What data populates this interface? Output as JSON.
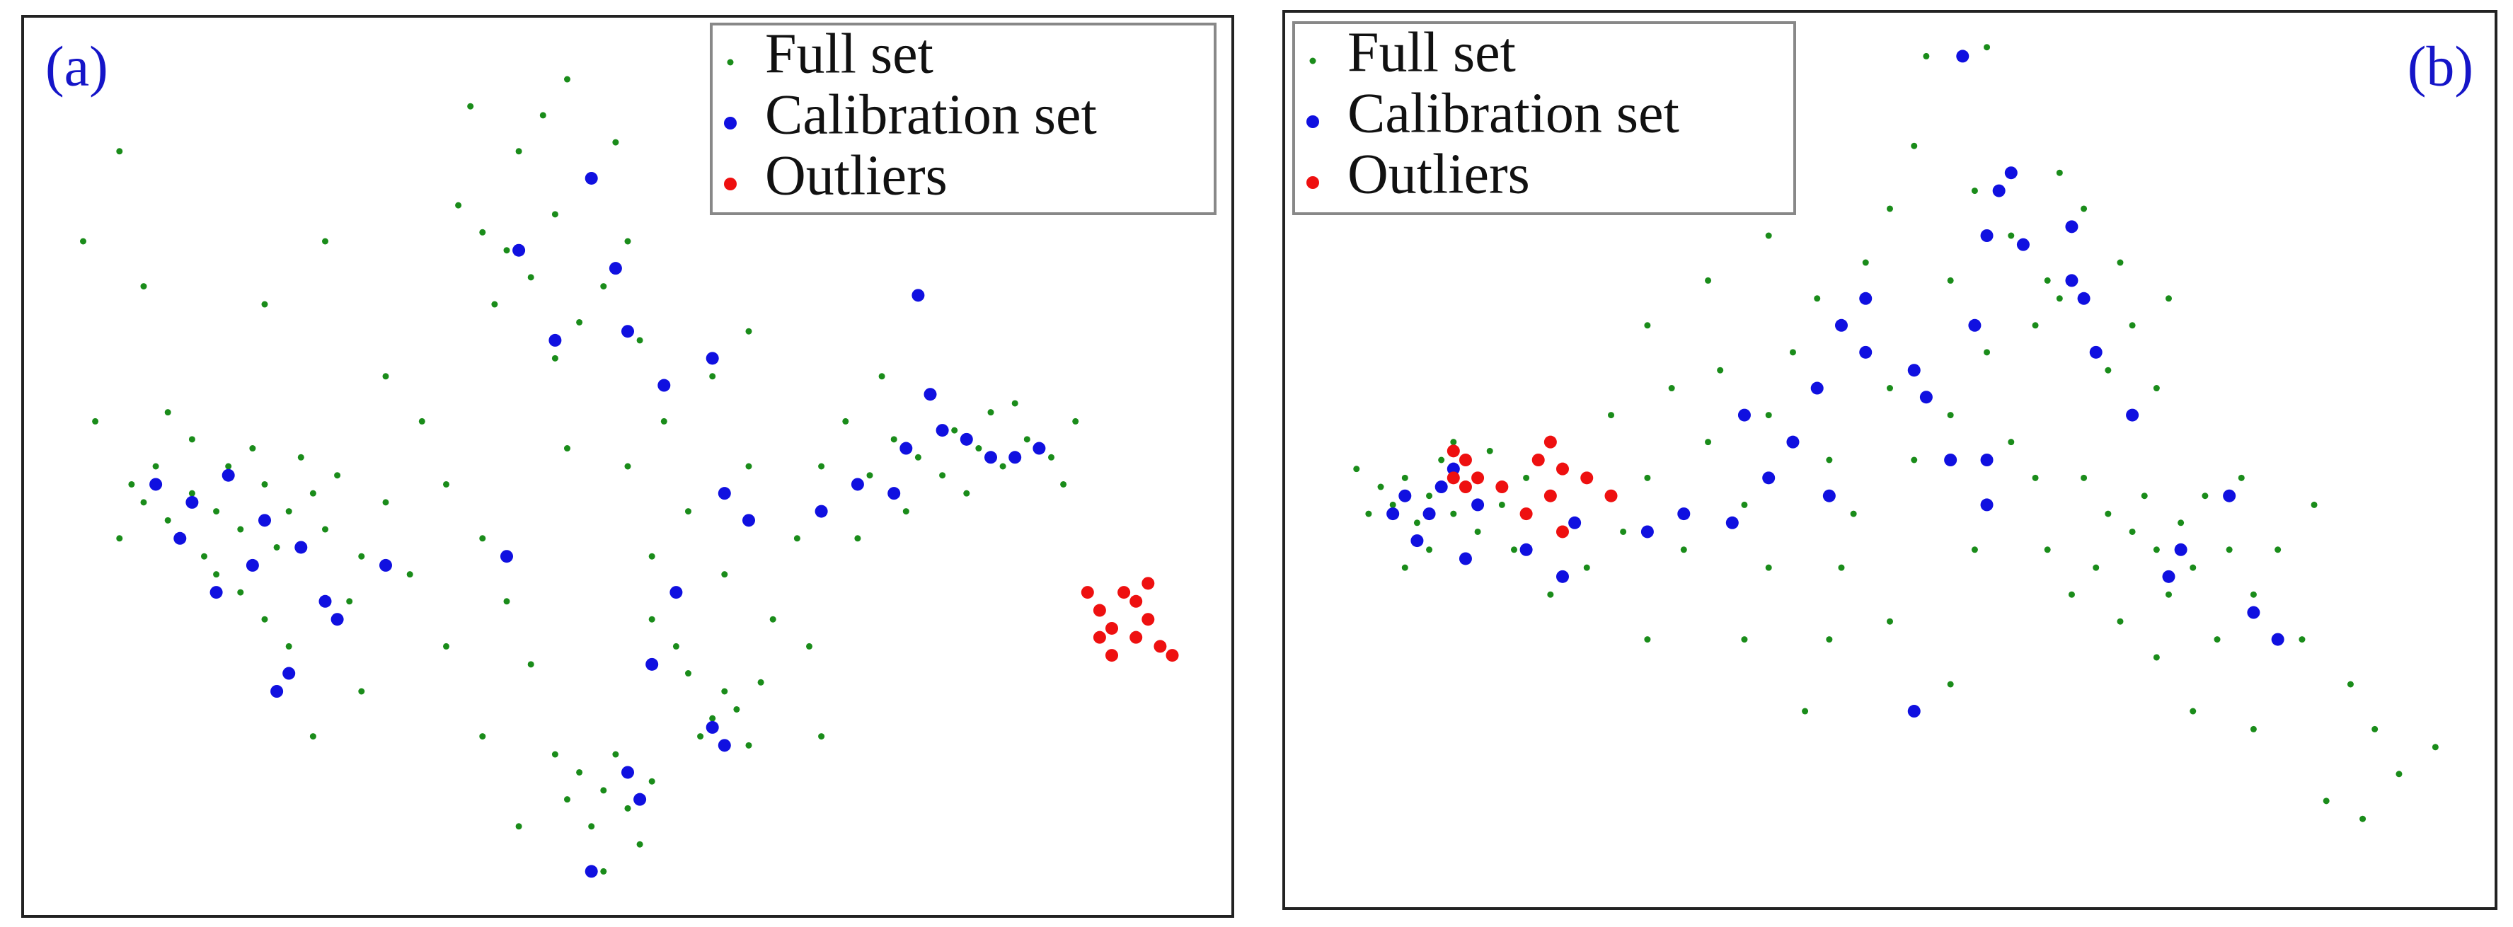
{
  "chart_data": [
    {
      "type": "scatter",
      "label": "(a)",
      "xlim": [
        0,
        100
      ],
      "ylim": [
        0,
        100
      ],
      "legend": "upper right",
      "series": [
        {
          "name": "Full set",
          "color": "#1a8c1a",
          "x": [
            16,
            14,
            18,
            12,
            20,
            17,
            10,
            22,
            15,
            19,
            13,
            24,
            11,
            21,
            16,
            25,
            9,
            23,
            18,
            26,
            14,
            20,
            28,
            12,
            30,
            8,
            22,
            27,
            6,
            32,
            40,
            38,
            42,
            44,
            41,
            43,
            45,
            47,
            39,
            46,
            48,
            50,
            36,
            44,
            49,
            51,
            37,
            79,
            77,
            81,
            76,
            83,
            80,
            74,
            85,
            78,
            82,
            72,
            75,
            86,
            70,
            73,
            71,
            68,
            69,
            66,
            87,
            48,
            46,
            50,
            47,
            49,
            45,
            51,
            52,
            44,
            48,
            57,
            56,
            59,
            58,
            55,
            60,
            54,
            61,
            30,
            33,
            35,
            38,
            40,
            42,
            52,
            55,
            58,
            60,
            62,
            64,
            53,
            57,
            60,
            50,
            45,
            35,
            28,
            24,
            10,
            8,
            5,
            20,
            25,
            65,
            66,
            38,
            41,
            52
          ],
          "values": [
            45,
            47,
            43,
            44,
            48,
            50,
            46,
            45,
            40,
            52,
            42,
            47,
            50,
            41,
            38,
            43,
            48,
            51,
            36,
            49,
            53,
            33,
            40,
            56,
            46,
            42,
            30,
            35,
            55,
            38,
            74,
            76,
            71,
            78,
            85,
            89,
            93,
            82,
            68,
            66,
            70,
            75,
            79,
            62,
            86,
            64,
            90,
            52,
            54,
            50,
            49,
            53,
            56,
            51,
            51,
            47,
            57,
            53,
            58,
            48,
            49,
            45,
            60,
            55,
            42,
            50,
            55,
            14,
            16,
            12,
            10,
            18,
            13,
            8,
            15,
            18,
            5,
            22,
            20,
            23,
            25,
            27,
            19,
            30,
            26,
            60,
            55,
            48,
            42,
            35,
            28,
            40,
            45,
            38,
            50,
            33,
            42,
            55,
            60,
            65,
            50,
            52,
            30,
            25,
            20,
            70,
            85,
            75,
            68,
            75,
            30,
            20,
            20,
            10,
            33
          ]
        },
        {
          "name": "Calibration set",
          "color": "#1010e0",
          "x": [
            14,
            17,
            13,
            20,
            11,
            19,
            16,
            23,
            26,
            22,
            21,
            25,
            30,
            41,
            44,
            47,
            49,
            50,
            53,
            57,
            58,
            60,
            52,
            54,
            66,
            72,
            73,
            76,
            78,
            80,
            82,
            84,
            75,
            69,
            58,
            57,
            51,
            50,
            47,
            74,
            40
          ],
          "values": [
            46,
            49,
            42,
            44,
            48,
            39,
            36,
            41,
            33,
            27,
            25,
            35,
            39,
            74,
            64,
            82,
            72,
            65,
            59,
            62,
            47,
            44,
            28,
            36,
            45,
            47,
            52,
            54,
            53,
            51,
            51,
            52,
            58,
            48,
            19,
            21,
            13,
            16,
            5,
            69,
            40
          ]
        },
        {
          "name": "Outliers",
          "color": "#ee1010",
          "x": [
            88,
            89,
            91,
            92,
            93,
            90,
            92,
            93,
            90,
            89,
            94,
            95
          ],
          "values": [
            36,
            34,
            36,
            35,
            37,
            32,
            31,
            33,
            29,
            31,
            30,
            29
          ]
        }
      ]
    },
    {
      "type": "scatter",
      "label": "(b)",
      "xlim": [
        0,
        100
      ],
      "ylim": [
        0,
        100
      ],
      "legend": "upper left",
      "series": [
        {
          "name": "Full set",
          "color": "#1a8c1a",
          "x": [
            12,
            10,
            14,
            11,
            13,
            9,
            15,
            8,
            16,
            12,
            17,
            7,
            14,
            18,
            10,
            6,
            19,
            20,
            30,
            35,
            40,
            45,
            50,
            42,
            38,
            47,
            52,
            55,
            33,
            36,
            44,
            48,
            55,
            58,
            60,
            62,
            46,
            40,
            28,
            25,
            32,
            50,
            52,
            57,
            60,
            63,
            53,
            58,
            64,
            35,
            40,
            30,
            27,
            45,
            50,
            38,
            43,
            55,
            57,
            22,
            30,
            70,
            68,
            72,
            74,
            67,
            71,
            75,
            73,
            69,
            66,
            76,
            78,
            80,
            77,
            72,
            65,
            63,
            79,
            82,
            84,
            85,
            88,
            90,
            92,
            95,
            89,
            86,
            80,
            75,
            62,
            65,
            68,
            70,
            72,
            66,
            69,
            73,
            64,
            70
          ],
          "values": [
            46,
            48,
            44,
            43,
            50,
            45,
            47,
            47,
            42,
            40,
            51,
            44,
            52,
            45,
            38,
            49,
            40,
            48,
            48,
            52,
            55,
            50,
            58,
            62,
            45,
            44,
            50,
            55,
            40,
            60,
            68,
            72,
            70,
            62,
            52,
            48,
            38,
            38,
            42,
            38,
            58,
            78,
            85,
            80,
            75,
            70,
            95,
            96,
            68,
            70,
            75,
            65,
            55,
            30,
            32,
            30,
            22,
            25,
            40,
            35,
            30,
            42,
            44,
            40,
            43,
            38,
            46,
            38,
            35,
            32,
            48,
            46,
            40,
            35,
            30,
            28,
            35,
            40,
            48,
            40,
            30,
            45,
            25,
            20,
            15,
            18,
            10,
            12,
            20,
            22,
            65,
            70,
            60,
            65,
            58,
            78,
            72,
            68,
            82,
            55
          ]
        },
        {
          "name": "Calibration set",
          "color": "#1010e0",
          "x": [
            10,
            12,
            13,
            9,
            11,
            14,
            16,
            15,
            20,
            24,
            23,
            30,
            33,
            37,
            40,
            45,
            38,
            42,
            44,
            46,
            48,
            48,
            52,
            53,
            55,
            58,
            57,
            60,
            58,
            61,
            65,
            66,
            67,
            65,
            70,
            74,
            73,
            78,
            80,
            82,
            52,
            58,
            56,
            59
          ],
          "values": [
            46,
            44,
            47,
            44,
            41,
            49,
            45,
            39,
            40,
            43,
            37,
            42,
            44,
            43,
            48,
            46,
            55,
            52,
            58,
            65,
            62,
            68,
            60,
            57,
            50,
            45,
            65,
            82,
            75,
            74,
            70,
            68,
            62,
            76,
            55,
            40,
            37,
            46,
            33,
            30,
            22,
            50,
            95,
            80
          ]
        },
        {
          "name": "Outliers",
          "color": "#ee1010",
          "x": [
            14,
            15,
            15,
            14,
            16,
            18,
            21,
            22,
            23,
            22,
            25,
            27,
            23,
            20
          ],
          "values": [
            48,
            47,
            50,
            51,
            48,
            47,
            50,
            52,
            49,
            46,
            48,
            46,
            42,
            44
          ]
        }
      ]
    }
  ]
}
